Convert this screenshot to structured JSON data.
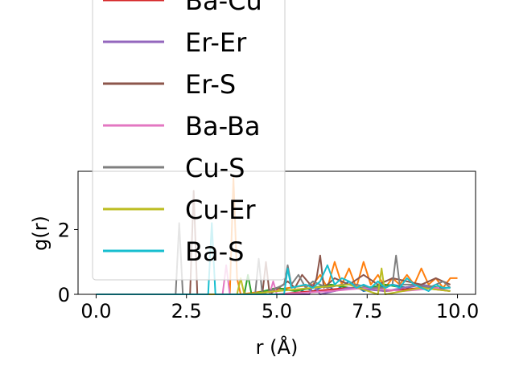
{
  "chart_data": {
    "type": "line",
    "xlabel": "r (Å)",
    "ylabel": "g(r)",
    "xlim": [
      -0.5,
      10.5
    ],
    "ylim": [
      0,
      3.8
    ],
    "xticks": [
      0.0,
      2.5,
      5.0,
      7.5,
      10.0
    ],
    "xtick_labels": [
      "0.0",
      "2.5",
      "5.0",
      "7.5",
      "10.0"
    ],
    "yticks": [
      0,
      2
    ],
    "ytick_labels": [
      "0",
      "2"
    ],
    "grid": false,
    "legend_placement": "upper-left, overflowing above axes",
    "legend": [
      {
        "name": "Ba-Cu",
        "color": "#d62728"
      },
      {
        "name": "Er-Er",
        "color": "#9467bd"
      },
      {
        "name": "Er-S",
        "color": "#8c564b"
      },
      {
        "name": "Ba-Ba",
        "color": "#e377c2"
      },
      {
        "name": "Cu-S",
        "color": "#7f7f7f"
      },
      {
        "name": "Cu-Er",
        "color": "#bcbd22"
      },
      {
        "name": "Ba-S",
        "color": "#17becf"
      }
    ],
    "series": [
      {
        "name": "",
        "color": "#1f77b4",
        "x": [
          0,
          5.6,
          5.8,
          6.0,
          6.4,
          6.6,
          7.0,
          7.4,
          7.8,
          8.2,
          8.6,
          9.0,
          9.4,
          9.8
        ],
        "y": [
          0,
          0,
          0.2,
          0.1,
          0.3,
          0.1,
          0.4,
          0.1,
          0.2,
          0.3,
          0.2,
          0.3,
          0.2,
          0.1
        ]
      },
      {
        "name": "",
        "color": "#ff7f0e",
        "x": [
          0,
          3.7,
          3.8,
          3.9,
          4.0,
          6.0,
          6.2,
          6.4,
          6.6,
          6.8,
          7.0,
          7.2,
          7.4,
          7.6,
          7.8,
          8.0,
          8.2,
          8.4,
          8.6,
          8.8,
          9.0,
          9.2,
          9.4,
          9.6,
          9.8,
          10.0
        ],
        "y": [
          0,
          0,
          3.6,
          0.5,
          0,
          0.3,
          0.6,
          0.2,
          1.0,
          0.3,
          0.8,
          0.2,
          1.0,
          0.3,
          0.6,
          0.2,
          0.5,
          0.3,
          0.6,
          0.3,
          0.8,
          0.3,
          0.5,
          0.2,
          0.5,
          0.5
        ]
      },
      {
        "name": "",
        "color": "#2ca02c",
        "x": [
          0,
          4.1,
          4.2,
          4.3,
          5.0,
          5.5,
          6.0,
          6.5,
          7.0,
          7.5,
          8.0,
          8.5,
          9.0,
          9.5,
          9.8
        ],
        "y": [
          0,
          0,
          0.6,
          0,
          0.2,
          0.1,
          0.2,
          0.3,
          0.2,
          0.2,
          0.3,
          0.2,
          0.3,
          0.2,
          0.2
        ]
      },
      {
        "name": "Ba-Cu",
        "color": "#d62728",
        "x": [
          0,
          5.0,
          6.0,
          7.0,
          8.0,
          9.0,
          9.8
        ],
        "y": [
          0,
          0,
          0.1,
          0.2,
          0.1,
          0.2,
          0.1
        ]
      },
      {
        "name": "Er-Er",
        "color": "#9467bd",
        "x": [
          0,
          5.9,
          6.0,
          6.2,
          7.0,
          8.0,
          9.0,
          9.8
        ],
        "y": [
          0,
          0,
          0.3,
          0,
          0.2,
          0.1,
          0.3,
          0.1
        ]
      },
      {
        "name": "Er-S",
        "color": "#8c564b",
        "x": [
          0,
          2.6,
          2.7,
          2.8,
          4.6,
          4.7,
          4.8,
          5.3,
          5.5,
          5.7,
          6.0,
          6.1,
          6.2,
          6.3,
          6.6,
          7.0,
          7.4,
          7.8,
          8.2,
          8.6,
          9.0,
          9.4,
          9.8
        ],
        "y": [
          0,
          0,
          3.2,
          0,
          0,
          1.0,
          0,
          0.4,
          0.2,
          0.6,
          0.2,
          0.5,
          1.2,
          0.2,
          0.5,
          0.3,
          0.6,
          0.3,
          0.5,
          0.4,
          0.3,
          0.5,
          0.3
        ]
      },
      {
        "name": "Ba-Ba",
        "color": "#e377c2",
        "x": [
          0,
          3.5,
          3.6,
          3.7,
          4.8,
          4.9,
          5.0,
          6.5,
          7.5,
          8.5,
          9.5
        ],
        "y": [
          0,
          0,
          0.9,
          0,
          0,
          0.4,
          0,
          0.1,
          0.2,
          0.1,
          0.2
        ]
      },
      {
        "name": "Cu-S",
        "color": "#7f7f7f",
        "x": [
          0,
          2.2,
          2.3,
          2.4,
          4.4,
          4.5,
          4.6,
          5.2,
          5.3,
          5.4,
          5.6,
          5.8,
          6.0,
          6.4,
          6.8,
          7.2,
          7.6,
          8.0,
          8.2,
          8.3,
          8.4,
          8.8,
          9.2,
          9.6,
          9.8
        ],
        "y": [
          0,
          0,
          2.2,
          0,
          0,
          1.1,
          0,
          0.3,
          0.9,
          0.3,
          0.6,
          0.2,
          0.4,
          0.2,
          0.3,
          0.3,
          0.2,
          0.2,
          0.3,
          1.2,
          0.3,
          0.3,
          0.2,
          0.4,
          0.2
        ]
      },
      {
        "name": "Cu-Er",
        "color": "#bcbd22",
        "x": [
          0,
          3.9,
          4.0,
          4.1,
          6.0,
          7.0,
          7.8,
          7.9,
          8.0,
          9.0,
          9.8
        ],
        "y": [
          0,
          0,
          0.5,
          0,
          0.2,
          0.3,
          0,
          0.8,
          0,
          0.2,
          0.1
        ]
      },
      {
        "name": "Ba-S",
        "color": "#17becf",
        "x": [
          0,
          3.1,
          3.2,
          3.3,
          5.2,
          5.3,
          5.4,
          5.8,
          6.0,
          6.2,
          6.4,
          6.6,
          6.8,
          7.0,
          7.2,
          7.4,
          7.6,
          7.8,
          8.0,
          8.2,
          8.4,
          8.6,
          8.8,
          9.0,
          9.2,
          9.4,
          9.6,
          9.8
        ],
        "y": [
          0,
          0,
          2.2,
          0,
          0,
          0.8,
          0.2,
          0.3,
          0.2,
          0.4,
          0.9,
          0.3,
          0.5,
          0.4,
          0.2,
          0.3,
          0.2,
          0.4,
          0.2,
          0.3,
          0.2,
          0.5,
          0.3,
          0.2,
          0.1,
          0.3,
          0.2,
          0.2
        ]
      }
    ]
  }
}
